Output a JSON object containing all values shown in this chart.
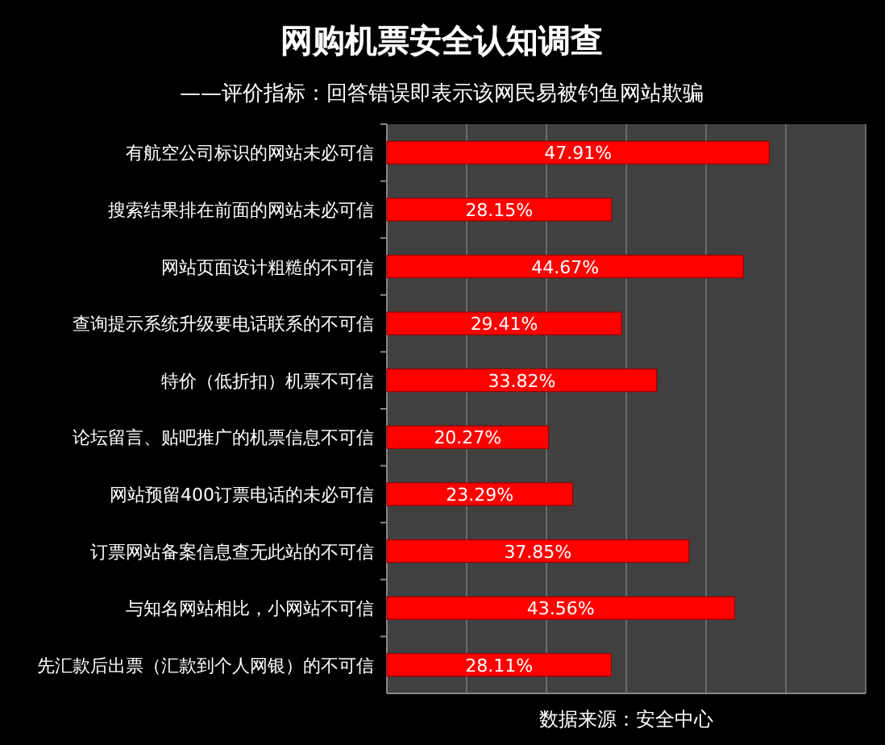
{
  "chart_data": {
    "type": "bar",
    "orientation": "horizontal",
    "title": "网购机票安全认知调查",
    "subtitle": "——评价指标：回答错误即表示该网民易被钓鱼网站欺骗",
    "categories": [
      "有航空公司标识的网站未必可信",
      "搜索结果排在前面的网站未必可信",
      "网站页面设计粗糙的不可信",
      "查询提示系统升级要电话联系的不可信",
      "特价（低折扣）机票不可信",
      "论坛留言、贴吧推广的机票信息不可信",
      "网站预留400订票电话的未必可信",
      "订票网站备案信息查无此站的不可信",
      "与知名网站相比，小网站不可信",
      "先汇款后出票（汇款到个人网银）的不可信"
    ],
    "values": [
      47.91,
      28.15,
      44.67,
      29.41,
      33.82,
      20.27,
      23.29,
      37.85,
      43.56,
      28.11
    ],
    "value_labels": [
      "47.91%",
      "28.15%",
      "44.67%",
      "29.41%",
      "33.82%",
      "20.27%",
      "23.29%",
      "37.85%",
      "43.56%",
      "28.11%"
    ],
    "color": "#ff0000",
    "xlim": [
      0,
      60
    ],
    "xticks": [
      {
        "value": 0,
        "label": null
      },
      {
        "value": 10,
        "label": null
      },
      {
        "value": 20,
        "label": null
      },
      {
        "value": 30,
        "label": null
      },
      {
        "value": 40,
        "label": null
      },
      {
        "value": 50,
        "label": null
      },
      {
        "value": 60,
        "label": null
      }
    ],
    "grid": "x",
    "tick_labels": false,
    "annotations": [
      "数据来源：安全中心"
    ]
  }
}
